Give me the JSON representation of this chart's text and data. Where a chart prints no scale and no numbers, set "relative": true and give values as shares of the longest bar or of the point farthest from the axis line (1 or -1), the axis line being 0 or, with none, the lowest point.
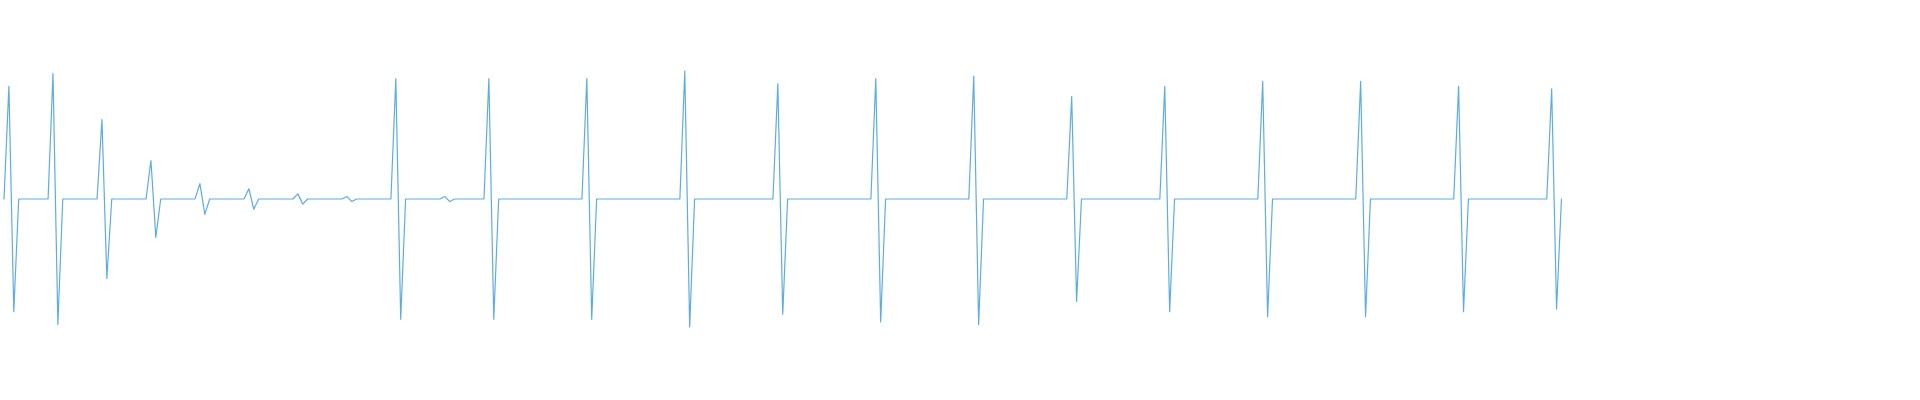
{
  "chart_data": {
    "type": "line",
    "relative": true,
    "color": "#5dade2",
    "categories": [
      null,
      null,
      null,
      null,
      null,
      null,
      null,
      null,
      null,
      null,
      null,
      null,
      null,
      null,
      null,
      null,
      null,
      null,
      null,
      null,
      null,
      null,
      null,
      null,
      null,
      null,
      null,
      null,
      null,
      null,
      null,
      null,
      null,
      null,
      null,
      null,
      null,
      null,
      null,
      null,
      null,
      null,
      null,
      null,
      null,
      null,
      null,
      null,
      null,
      null,
      null,
      null,
      null,
      null,
      null,
      null,
      null,
      null,
      null,
      null,
      null,
      null,
      null,
      null,
      null,
      null,
      null,
      null,
      null,
      null,
      null,
      null,
      null,
      null,
      null,
      null,
      null,
      null,
      null,
      null,
      null,
      null,
      null,
      null,
      null,
      null,
      null,
      null,
      null,
      null,
      null,
      null,
      null,
      null,
      null,
      null,
      null,
      null,
      null,
      null,
      null,
      null,
      null,
      null,
      null,
      null,
      null,
      null,
      null,
      null,
      null,
      null,
      null,
      null,
      null,
      null,
      null,
      null,
      null,
      null,
      null,
      null,
      null,
      null,
      null,
      null,
      null,
      null,
      null,
      null,
      null,
      null,
      null,
      null,
      null,
      null,
      null,
      null,
      null,
      null,
      null,
      null,
      null,
      null,
      null,
      null,
      null,
      null,
      null,
      null,
      null,
      null,
      null,
      null,
      null,
      null,
      null,
      null,
      null,
      null,
      null,
      null,
      null,
      null,
      null,
      null,
      null,
      null,
      null,
      null,
      null,
      null,
      null,
      null,
      null,
      null,
      null,
      null,
      null,
      null,
      null,
      null,
      null,
      null,
      null,
      null,
      null,
      null,
      null,
      null,
      null,
      null,
      null,
      null,
      null,
      null,
      null,
      null,
      null,
      null,
      null,
      null,
      null,
      null,
      null,
      null,
      null,
      null,
      null,
      null,
      null,
      null,
      null,
      null,
      null,
      null,
      null,
      null,
      null,
      null,
      null,
      null,
      null,
      null,
      null,
      null,
      null,
      null,
      null,
      null,
      null,
      null,
      null,
      null,
      null,
      null,
      null,
      null,
      null,
      null,
      null,
      null,
      null,
      null,
      null,
      null,
      null,
      null,
      null,
      null,
      null,
      null,
      null,
      null,
      null,
      null,
      null,
      null,
      null,
      null,
      null,
      null,
      null,
      null,
      null,
      null,
      null,
      null,
      null,
      null,
      null,
      null,
      null,
      null,
      null,
      null,
      null,
      null,
      null,
      null,
      null,
      null,
      null,
      null,
      null,
      null,
      null,
      null,
      null,
      null,
      null,
      null,
      null,
      null,
      null,
      null,
      null,
      null,
      null,
      null,
      null,
      null,
      null,
      null,
      null,
      null,
      null,
      null,
      null,
      null,
      null,
      null,
      null,
      null,
      null,
      null,
      null,
      null,
      null,
      null,
      null,
      null,
      null,
      null,
      null,
      null,
      null,
      null,
      null,
      null,
      null,
      null,
      null,
      null,
      null,
      null,
      null,
      null,
      null,
      null,
      null,
      null,
      null,
      null,
      null,
      null,
      null,
      null,
      null,
      null,
      null,
      null,
      null,
      null,
      null,
      null,
      null,
      null,
      null,
      null,
      null,
      null,
      null,
      null,
      null,
      null,
      null,
      null,
      null,
      null,
      null,
      null,
      null,
      null,
      null,
      null,
      null,
      null,
      null,
      null,
      null,
      null,
      null,
      null,
      null,
      null,
      null,
      null,
      null,
      null,
      null,
      null
    ],
    "values": [
      0.5,
      0.94,
      0.06,
      0.5,
      null,
      null,
      null,
      null,
      null,
      0.5,
      0.99,
      0.01,
      0.5,
      null,
      null,
      null,
      null,
      null,
      null,
      0.5,
      0.81,
      0.19,
      0.5,
      null,
      null,
      null,
      null,
      null,
      null,
      0.5,
      0.65,
      0.35,
      0.5,
      null,
      null,
      null,
      null,
      null,
      null,
      0.5,
      0.56,
      0.44,
      0.5,
      null,
      null,
      null,
      null,
      null,
      null,
      0.5,
      0.54,
      0.46,
      0.5,
      null,
      null,
      null,
      null,
      null,
      null,
      0.5,
      0.52,
      0.48,
      0.5,
      null,
      null,
      null,
      null,
      null,
      null,
      0.5,
      0.51,
      0.49,
      0.5,
      null,
      null,
      null,
      null,
      null,
      null,
      0.5,
      0.97,
      0.03,
      0.5,
      null,
      null,
      null,
      null,
      null,
      null,
      0.5,
      0.51,
      0.49,
      0.5,
      null,
      null,
      null,
      null,
      null,
      0.5,
      0.97,
      0.03,
      0.5,
      null,
      null,
      null,
      null,
      null,
      null,
      null,
      null,
      null,
      null,
      null,
      null,
      null,
      null,
      null,
      null,
      0.5,
      0.97,
      0.03,
      0.5,
      null,
      null,
      null,
      null,
      null,
      null,
      null,
      null,
      null,
      null,
      null,
      null,
      null,
      null,
      null,
      null,
      0.5,
      1,
      0,
      0.5,
      null,
      null,
      null,
      null,
      null,
      null,
      null,
      null,
      null,
      null,
      null,
      null,
      null,
      null,
      null,
      0.5,
      0.95,
      0.05,
      0.5,
      null,
      null,
      null,
      null,
      null,
      null,
      null,
      null,
      null,
      null,
      null,
      null,
      null,
      null,
      null,
      null,
      0.5,
      0.97,
      0.02,
      0.5,
      null,
      null,
      null,
      null,
      null,
      null,
      null,
      null,
      null,
      null,
      null,
      null,
      null,
      null,
      null,
      null,
      0.5,
      0.98,
      0.01,
      0.5,
      null,
      null,
      null,
      null,
      null,
      null,
      null,
      null,
      null,
      null,
      null,
      null,
      null,
      null,
      null,
      null,
      0.5,
      0.9,
      0.1,
      0.5,
      null,
      null,
      null,
      null,
      null,
      null,
      null,
      null,
      null,
      null,
      null,
      null,
      null,
      null,
      null,
      0.5,
      0.94,
      0.06,
      0.5,
      null,
      null,
      null,
      null,
      null,
      null,
      null,
      null,
      null,
      null,
      null,
      null,
      null,
      null,
      null,
      null,
      0.5,
      0.96,
      0.04,
      0.5,
      null,
      null,
      null,
      null,
      null,
      null,
      null,
      null,
      null,
      null,
      null,
      null,
      null,
      null,
      null,
      null,
      0.5,
      0.96,
      0.04,
      0.5,
      null,
      null,
      null,
      null,
      null,
      null,
      null,
      null,
      null,
      null,
      null,
      null,
      null,
      null,
      null,
      null,
      0.5,
      0.94,
      0.06,
      0.5,
      null,
      null,
      null,
      null,
      null,
      null,
      null,
      null,
      null,
      null,
      null,
      null,
      null,
      null,
      null,
      0.5,
      0.93,
      0.07,
      0.5,
      null,
      null,
      null,
      null,
      null,
      null,
      null,
      null,
      null,
      null,
      null,
      null,
      null,
      null,
      null,
      null,
      null,
      null,
      null,
      null,
      null,
      null,
      null,
      null,
      null,
      null,
      null,
      null,
      null,
      null,
      null,
      null,
      null,
      null,
      null,
      null,
      null,
      null,
      null,
      null,
      null,
      null,
      null,
      null,
      null,
      null,
      null,
      null,
      null,
      null,
      null,
      null,
      null,
      null,
      null,
      null,
      null,
      null,
      null,
      null,
      null,
      null,
      null,
      null,
      null,
      null,
      null,
      null,
      null,
      null,
      null,
      null,
      null
    ]
  }
}
